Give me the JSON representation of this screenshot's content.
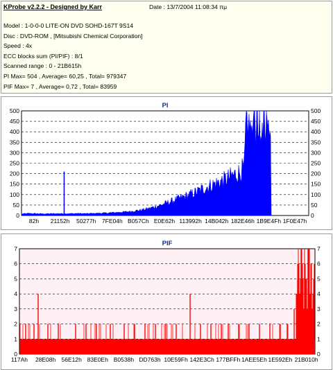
{
  "header": {
    "app_title": "KProbe v2.2.2 - Designed by Karr",
    "date": "Date : 13/7/2004 11:08:34 πμ",
    "lines": [
      "Model : 1-0-0-0 LITE-ON DVD SOHD-167T     9S14",
      "Disc : DVD-ROM ,  [Mitsubishi Chemical Corporation]",
      "Speed : 4x",
      "ECC blocks sum (PI/PIF) : 8/1",
      "Scanned range : 0 - 21B615h",
      "PI Max= 504 , Average= 60,25 , Total= 979347",
      "PIF Max= 7 , Average= 0,72 , Total= 83959"
    ]
  },
  "colors": {
    "pi_fill": "#0000ff",
    "pif_fill": "#ff0000",
    "bg_pi": "#ffffff",
    "bg_pif": "#fff0f5",
    "title": "#1a2f8a"
  },
  "chart_data": [
    {
      "type": "area",
      "title": "PI",
      "x_tick_labels": [
        "82h",
        "21152h",
        "50277h",
        "7FE04h",
        "B057Ch",
        "E0E62h",
        "113992h",
        "14B042h",
        "182E46h",
        "1B9E4Fh",
        "1F0E47h"
      ],
      "y_ticks": [
        0,
        50,
        100,
        150,
        200,
        250,
        300,
        350,
        400,
        450,
        500
      ],
      "ylim": [
        0,
        500
      ],
      "grid": true,
      "series": [
        {
          "values_points": [
            [
              0,
              8
            ],
            [
              10,
              10
            ],
            [
              20,
              9
            ],
            [
              30,
              8
            ],
            [
              50,
              9
            ],
            [
              70,
              9
            ],
            [
              80,
              10
            ],
            [
              90,
              9
            ],
            [
              100,
              10
            ],
            [
              110,
              11
            ],
            [
              120,
              12
            ],
            [
              130,
              14
            ],
            [
              140,
              16
            ],
            [
              150,
              18
            ],
            [
              160,
              22
            ],
            [
              170,
              26
            ],
            [
              180,
              33
            ],
            [
              190,
              42
            ],
            [
              200,
              52
            ],
            [
              210,
              64
            ],
            [
              220,
              76
            ],
            [
              230,
              88
            ],
            [
              240,
              100
            ],
            [
              250,
              114
            ],
            [
              260,
              130
            ],
            [
              270,
              145
            ],
            [
              280,
              158
            ],
            [
              290,
              172
            ],
            [
              300,
              190
            ],
            [
              310,
              205
            ],
            [
              318,
              230
            ],
            [
              320,
              440
            ],
            [
              330,
              460
            ],
            [
              340,
              470
            ],
            [
              350,
              455
            ],
            [
              356,
              430
            ]
          ],
          "spikes": [
            [
              60,
              210
            ],
            [
              318,
              240
            ]
          ]
        }
      ]
    },
    {
      "type": "area",
      "title": "PIF",
      "x_tick_labels": [
        "117Ah",
        "28E08h",
        "56E12h",
        "83E0Eh",
        "B0538h",
        "DD763h",
        "10E59Fh",
        "142E3Ch",
        "177BFFh",
        "1AEE5Eh",
        "1E592Eh",
        "21B010h"
      ],
      "y_ticks": [
        0,
        1,
        2,
        3,
        4,
        5,
        6,
        7
      ],
      "ylim": [
        0,
        7
      ],
      "grid": true,
      "series": [
        {
          "baseline": 1,
          "spikes": [
            [
              8,
              2
            ],
            [
              20,
              2
            ],
            [
              26,
              4
            ],
            [
              40,
              2
            ],
            [
              55,
              2
            ],
            [
              80,
              2
            ],
            [
              95,
              2
            ],
            [
              110,
              2
            ],
            [
              130,
              2
            ],
            [
              150,
              2
            ],
            [
              165,
              2
            ],
            [
              180,
              2
            ],
            [
              195,
              2
            ],
            [
              210,
              2
            ],
            [
              225,
              2
            ],
            [
              245,
              4
            ],
            [
              260,
              2
            ],
            [
              275,
              2
            ],
            [
              290,
              2
            ],
            [
              300,
              2
            ],
            [
              315,
              2
            ],
            [
              330,
              2
            ],
            [
              345,
              2
            ],
            [
              360,
              2
            ],
            [
              375,
              2
            ],
            [
              385,
              2
            ],
            [
              395,
              3
            ],
            [
              400,
              5
            ],
            [
              405,
              7
            ],
            [
              410,
              6
            ],
            [
              415,
              7
            ]
          ]
        }
      ]
    }
  ]
}
